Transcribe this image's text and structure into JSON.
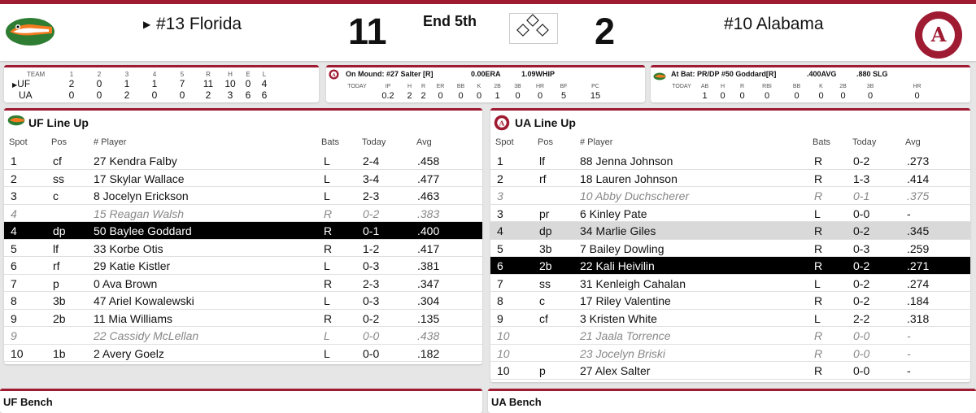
{
  "scoreboard": {
    "away_team": "#13 Florida",
    "away_score": "11",
    "home_team": "#10 Alabama",
    "home_score": "2",
    "inning": "End 5th",
    "alabama_logo_text": "ALABAMA CRIMSON TIDE"
  },
  "linescore": {
    "headers": [
      "TEAM",
      "1",
      "2",
      "3",
      "4",
      "5",
      "R",
      "H",
      "E",
      "L"
    ],
    "rows": [
      [
        "UF",
        "2",
        "0",
        "1",
        "1",
        "7",
        "11",
        "10",
        "0",
        "4"
      ],
      [
        "UA",
        "0",
        "0",
        "2",
        "0",
        "0",
        "2",
        "3",
        "6",
        "6"
      ]
    ]
  },
  "mound": {
    "title": "On Mound: #27 Salter [R]",
    "era": "0.00ERA",
    "whip": "1.09WHIP",
    "headers": [
      "TODAY",
      "IP",
      "H",
      "R",
      "ER",
      "BB",
      "K",
      "2B",
      "3B",
      "HR",
      "BF",
      "PC"
    ],
    "values": [
      "",
      "0.2",
      "2",
      "2",
      "0",
      "0",
      "0",
      "1",
      "0",
      "0",
      "5",
      "15"
    ]
  },
  "atbat": {
    "title": "At Bat: PR/DP #50 Goddard[R]",
    "avg": ".400AVG",
    "slg": ".880 SLG",
    "headers": [
      "TODAY",
      "AB",
      "H",
      "R",
      "RBI",
      "BB",
      "K",
      "2B",
      "3B",
      "HR"
    ],
    "values": [
      "",
      "1",
      "0",
      "0",
      "0",
      "0",
      "0",
      "0",
      "0",
      "0"
    ]
  },
  "uf_lineup": {
    "title": "UF Line Up",
    "headers": {
      "spot": "Spot",
      "pos": "Pos",
      "player": "# Player",
      "bats": "Bats",
      "today": "Today",
      "avg": "Avg"
    },
    "rows": [
      {
        "spot": "1",
        "pos": "cf",
        "player": "27 Kendra Falby",
        "bats": "L",
        "today": "2-4",
        "avg": ".458",
        "style": ""
      },
      {
        "spot": "2",
        "pos": "ss",
        "player": "17 Skylar Wallace",
        "bats": "L",
        "today": "3-4",
        "avg": ".477",
        "style": ""
      },
      {
        "spot": "3",
        "pos": "c",
        "player": "8 Jocelyn Erickson",
        "bats": "L",
        "today": "2-3",
        "avg": ".463",
        "style": ""
      },
      {
        "spot": "4",
        "pos": "",
        "player": "15 Reagan Walsh",
        "bats": "R",
        "today": "0-2",
        "avg": ".383",
        "style": "italic"
      },
      {
        "spot": "4",
        "pos": "dp",
        "player": "50 Baylee Goddard",
        "bats": "R",
        "today": "0-1",
        "avg": ".400",
        "style": "selected"
      },
      {
        "spot": "5",
        "pos": "lf",
        "player": "33 Korbe Otis",
        "bats": "R",
        "today": "1-2",
        "avg": ".417",
        "style": ""
      },
      {
        "spot": "6",
        "pos": "rf",
        "player": "29 Katie Kistler",
        "bats": "L",
        "today": "0-3",
        "avg": ".381",
        "style": ""
      },
      {
        "spot": "7",
        "pos": "p",
        "player": "0 Ava Brown",
        "bats": "R",
        "today": "2-3",
        "avg": ".347",
        "style": ""
      },
      {
        "spot": "8",
        "pos": "3b",
        "player": "47 Ariel Kowalewski",
        "bats": "L",
        "today": "0-3",
        "avg": ".304",
        "style": ""
      },
      {
        "spot": "9",
        "pos": "2b",
        "player": "11 Mia Williams",
        "bats": "R",
        "today": "0-2",
        "avg": ".135",
        "style": ""
      },
      {
        "spot": "9",
        "pos": "",
        "player": "22 Cassidy McLellan",
        "bats": "L",
        "today": "0-0",
        "avg": ".438",
        "style": "italic"
      },
      {
        "spot": "10",
        "pos": "1b",
        "player": "2 Avery Goelz",
        "bats": "L",
        "today": "0-0",
        "avg": ".182",
        "style": ""
      }
    ]
  },
  "ua_lineup": {
    "title": "UA Line Up",
    "headers": {
      "spot": "Spot",
      "pos": "Pos",
      "player": "# Player",
      "bats": "Bats",
      "today": "Today",
      "avg": "Avg"
    },
    "rows": [
      {
        "spot": "1",
        "pos": "lf",
        "player": "88 Jenna Johnson",
        "bats": "R",
        "today": "0-2",
        "avg": ".273",
        "style": ""
      },
      {
        "spot": "2",
        "pos": "rf",
        "player": "18 Lauren Johnson",
        "bats": "R",
        "today": "1-3",
        "avg": ".414",
        "style": ""
      },
      {
        "spot": "3",
        "pos": "",
        "player": "10 Abby Duchscherer",
        "bats": "R",
        "today": "0-1",
        "avg": ".375",
        "style": "italic"
      },
      {
        "spot": "3",
        "pos": "pr",
        "player": "6 Kinley Pate",
        "bats": "L",
        "today": "0-0",
        "avg": "-",
        "style": ""
      },
      {
        "spot": "4",
        "pos": "dp",
        "player": "34 Marlie Giles",
        "bats": "R",
        "today": "0-2",
        "avg": ".345",
        "style": "hl"
      },
      {
        "spot": "5",
        "pos": "3b",
        "player": "7 Bailey Dowling",
        "bats": "R",
        "today": "0-3",
        "avg": ".259",
        "style": ""
      },
      {
        "spot": "6",
        "pos": "2b",
        "player": "22 Kali Heivilin",
        "bats": "R",
        "today": "0-2",
        "avg": ".271",
        "style": "selected"
      },
      {
        "spot": "7",
        "pos": "ss",
        "player": "31 Kenleigh Cahalan",
        "bats": "L",
        "today": "0-2",
        "avg": ".274",
        "style": ""
      },
      {
        "spot": "8",
        "pos": "c",
        "player": "17 Riley Valentine",
        "bats": "R",
        "today": "0-2",
        "avg": ".184",
        "style": ""
      },
      {
        "spot": "9",
        "pos": "cf",
        "player": "3 Kristen White",
        "bats": "L",
        "today": "2-2",
        "avg": ".318",
        "style": ""
      },
      {
        "spot": "10",
        "pos": "",
        "player": "21 Jaala Torrence",
        "bats": "R",
        "today": "0-0",
        "avg": "-",
        "style": "italic"
      },
      {
        "spot": "10",
        "pos": "",
        "player": "23 Jocelyn Briski",
        "bats": "R",
        "today": "0-0",
        "avg": "-",
        "style": "italic"
      },
      {
        "spot": "10",
        "pos": "p",
        "player": "27 Alex Salter",
        "bats": "R",
        "today": "0-0",
        "avg": "-",
        "style": ""
      }
    ]
  },
  "uf_bench": {
    "title": "UF Bench"
  },
  "ua_bench": {
    "title": "UA Bench"
  },
  "colors": {
    "accent": "#9e1b32",
    "gator_green": "#2e7d32",
    "gator_orange": "#f47a20"
  }
}
